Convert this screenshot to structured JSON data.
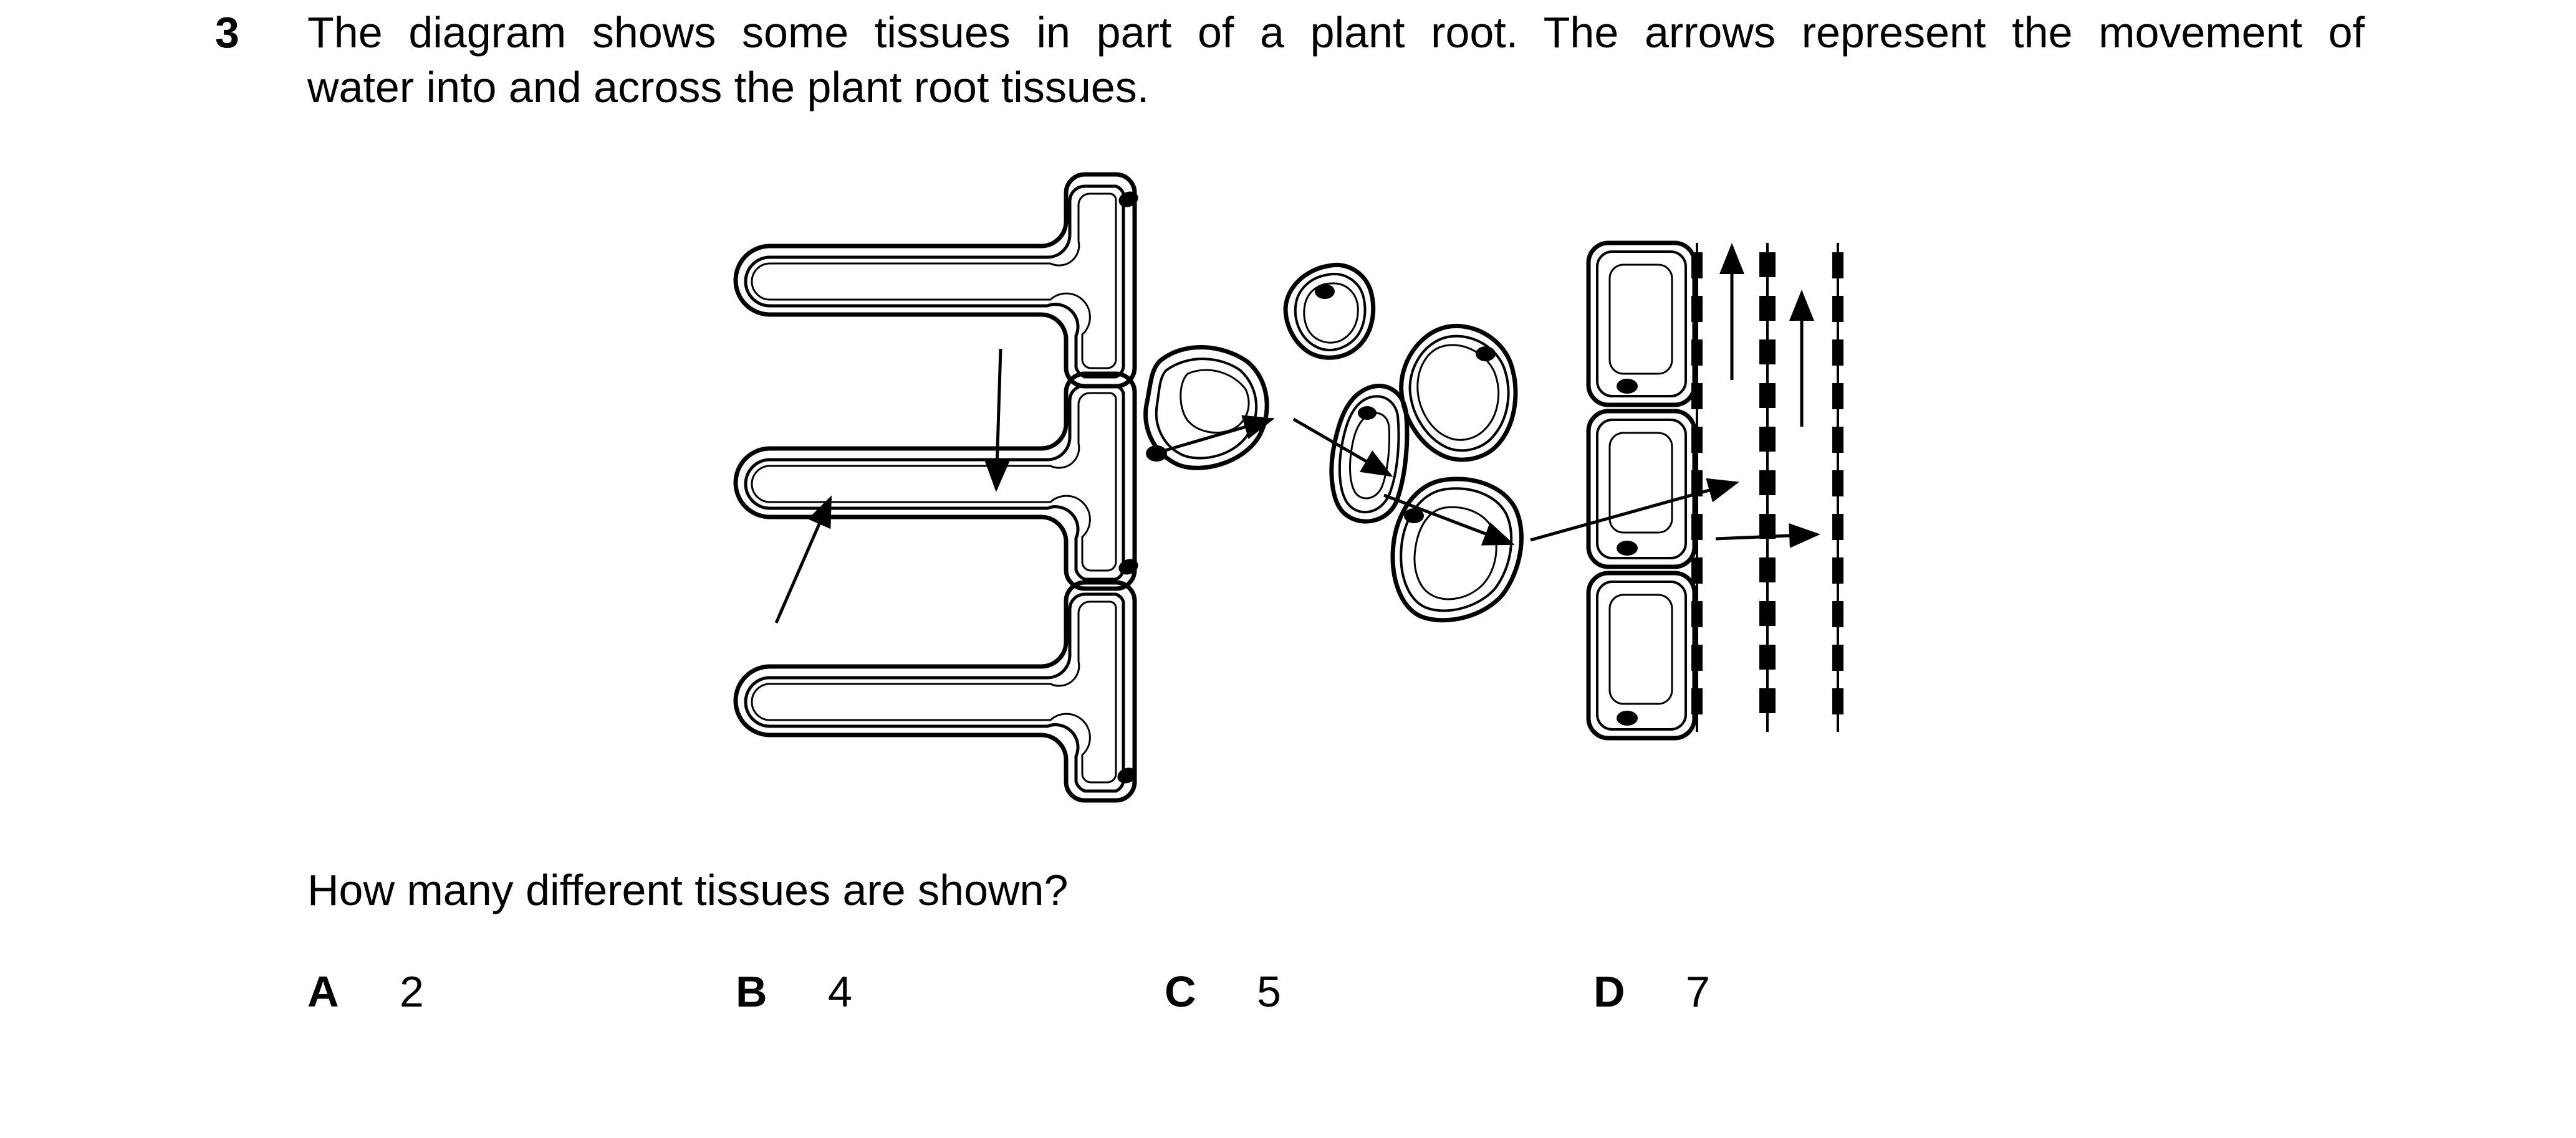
{
  "question": {
    "number": "3",
    "stem_line1": "The diagram shows some tissues in part of a plant root. The arrows represent the movement of",
    "stem_line2": "water into and across the plant root tissues.",
    "prompt": "How many different tissues are shown?"
  },
  "options": [
    {
      "letter": "A",
      "value": "2"
    },
    {
      "letter": "B",
      "value": "4"
    },
    {
      "letter": "C",
      "value": "5"
    },
    {
      "letter": "D",
      "value": "7"
    }
  ]
}
